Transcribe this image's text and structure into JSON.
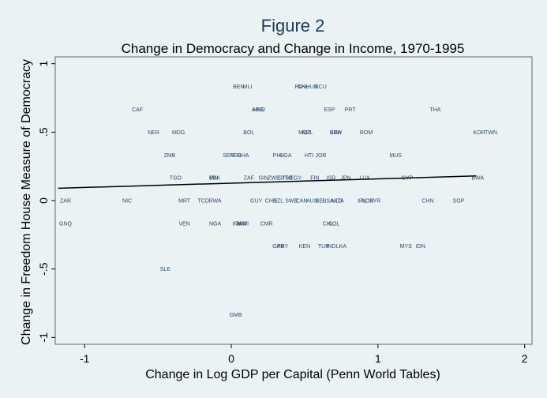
{
  "chart_data": {
    "type": "scatter",
    "title": "Figure 2",
    "subtitle": "Change in Democracy and Change in Income, 1970-1995",
    "xlabel": "Change in Log GDP per Capital (Penn World Tables)",
    "ylabel": "Change in Freedom House Measure of Democracy",
    "xlim": [
      -1.2,
      2.05
    ],
    "ylim": [
      -1.05,
      1.05
    ],
    "x_ticks": [
      -1,
      0,
      1,
      2
    ],
    "x_tick_labels": [
      "-1",
      "0",
      "1",
      "2"
    ],
    "y_ticks": [
      1,
      0.5,
      0,
      -0.5,
      -1
    ],
    "y_tick_labels": [
      "1",
      ".5",
      "0",
      "-.5",
      "-1"
    ],
    "grid": false,
    "points": [
      {
        "label": "BEN",
        "x": 0.05,
        "y": 0.833
      },
      {
        "label": "MLI",
        "x": 0.11,
        "y": 0.833
      },
      {
        "label": "PAN",
        "x": 0.47,
        "y": 0.833
      },
      {
        "label": "CHL",
        "x": 0.49,
        "y": 0.833
      },
      {
        "label": "HUN",
        "x": 0.55,
        "y": 0.833
      },
      {
        "label": "ECU",
        "x": 0.61,
        "y": 0.833
      },
      {
        "label": "CAF",
        "x": -0.64,
        "y": 0.667
      },
      {
        "label": "ARG",
        "x": 0.18,
        "y": 0.667
      },
      {
        "label": "HND",
        "x": 0.19,
        "y": 0.667
      },
      {
        "label": "ESP",
        "x": 0.67,
        "y": 0.667
      },
      {
        "label": "PRT",
        "x": 0.81,
        "y": 0.667
      },
      {
        "label": "THA",
        "x": 1.39,
        "y": 0.667
      },
      {
        "label": "NER",
        "x": -0.53,
        "y": 0.5
      },
      {
        "label": "MDG",
        "x": -0.36,
        "y": 0.5
      },
      {
        "label": "BOL",
        "x": 0.12,
        "y": 0.5
      },
      {
        "label": "MOZ",
        "x": 0.5,
        "y": 0.5
      },
      {
        "label": "NPL",
        "x": 0.52,
        "y": 0.5
      },
      {
        "label": "BRA",
        "x": 0.71,
        "y": 0.5
      },
      {
        "label": "URY",
        "x": 0.72,
        "y": 0.5
      },
      {
        "label": "ROM",
        "x": 0.92,
        "y": 0.5
      },
      {
        "label": "KOR",
        "x": 1.69,
        "y": 0.5
      },
      {
        "label": "TWN",
        "x": 1.77,
        "y": 0.5
      },
      {
        "label": "ZMB",
        "x": -0.42,
        "y": 0.333
      },
      {
        "label": "SEN",
        "x": -0.02,
        "y": 0.333
      },
      {
        "label": "PER",
        "x": 0.03,
        "y": 0.333
      },
      {
        "label": "GHA",
        "x": 0.08,
        "y": 0.333
      },
      {
        "label": "PHL",
        "x": 0.32,
        "y": 0.333
      },
      {
        "label": "UGA",
        "x": 0.37,
        "y": 0.333
      },
      {
        "label": "HTI",
        "x": 0.53,
        "y": 0.333
      },
      {
        "label": "JOR",
        "x": 0.61,
        "y": 0.333
      },
      {
        "label": "MUS",
        "x": 1.12,
        "y": 0.333
      },
      {
        "label": "TGO",
        "x": -0.38,
        "y": 0.167
      },
      {
        "label": "BDI",
        "x": -0.12,
        "y": 0.167
      },
      {
        "label": "PAK",
        "x": -0.11,
        "y": 0.167
      },
      {
        "label": "ZAF",
        "x": 0.12,
        "y": 0.167
      },
      {
        "label": "GIN",
        "x": 0.22,
        "y": 0.167
      },
      {
        "label": "ZWE",
        "x": 0.29,
        "y": 0.167
      },
      {
        "label": "GTM",
        "x": 0.36,
        "y": 0.167
      },
      {
        "label": "TTO",
        "x": 0.38,
        "y": 0.167
      },
      {
        "label": "EGY",
        "x": 0.44,
        "y": 0.167
      },
      {
        "label": "FIN",
        "x": 0.57,
        "y": 0.167
      },
      {
        "label": "ISR",
        "x": 0.68,
        "y": 0.167
      },
      {
        "label": "JPN",
        "x": 0.78,
        "y": 0.167
      },
      {
        "label": "LUX",
        "x": 0.91,
        "y": 0.167
      },
      {
        "label": "CYP",
        "x": 1.2,
        "y": 0.167
      },
      {
        "label": "BWA",
        "x": 1.68,
        "y": 0.167
      },
      {
        "label": "ZAR",
        "x": -1.13,
        "y": 0
      },
      {
        "label": "NIC",
        "x": -0.71,
        "y": 0
      },
      {
        "label": "MRT",
        "x": -0.32,
        "y": 0
      },
      {
        "label": "TCD",
        "x": -0.19,
        "y": 0
      },
      {
        "label": "RWA",
        "x": -0.11,
        "y": 0
      },
      {
        "label": "GUY",
        "x": 0.17,
        "y": 0
      },
      {
        "label": "CHE",
        "x": 0.27,
        "y": 0
      },
      {
        "label": "NZL",
        "x": 0.32,
        "y": 0
      },
      {
        "label": "SWE",
        "x": 0.41,
        "y": 0
      },
      {
        "label": "CAN",
        "x": 0.48,
        "y": 0
      },
      {
        "label": "AUS",
        "x": 0.55,
        "y": 0
      },
      {
        "label": "BEL",
        "x": 0.61,
        "y": 0
      },
      {
        "label": "USA",
        "x": 0.66,
        "y": 0
      },
      {
        "label": "NLD",
        "x": 0.72,
        "y": 0
      },
      {
        "label": "ITA",
        "x": 0.74,
        "y": 0
      },
      {
        "label": "IRL",
        "x": 0.89,
        "y": 0
      },
      {
        "label": "NOR",
        "x": 0.93,
        "y": 0
      },
      {
        "label": "SYR",
        "x": 0.98,
        "y": 0
      },
      {
        "label": "CHN",
        "x": 1.34,
        "y": 0
      },
      {
        "label": "SGP",
        "x": 1.55,
        "y": 0
      },
      {
        "label": "GNQ",
        "x": -1.13,
        "y": -0.167
      },
      {
        "label": "VEN",
        "x": -0.32,
        "y": -0.167
      },
      {
        "label": "NGA",
        "x": -0.11,
        "y": -0.167
      },
      {
        "label": "IRN",
        "x": 0.04,
        "y": -0.167
      },
      {
        "label": "JAM",
        "x": 0.07,
        "y": -0.167
      },
      {
        "label": "MWI",
        "x": 0.08,
        "y": -0.167
      },
      {
        "label": "CMR",
        "x": 0.24,
        "y": -0.167
      },
      {
        "label": "CHL",
        "x": 0.66,
        "y": -0.167
      },
      {
        "label": "COL",
        "x": 0.7,
        "y": -0.167
      },
      {
        "label": "GAB",
        "x": 0.32,
        "y": -0.333
      },
      {
        "label": "PRY",
        "x": 0.35,
        "y": -0.333
      },
      {
        "label": "KEN",
        "x": 0.5,
        "y": -0.333
      },
      {
        "label": "TUR",
        "x": 0.63,
        "y": -0.333
      },
      {
        "label": "IND",
        "x": 0.68,
        "y": -0.333
      },
      {
        "label": "LKA",
        "x": 0.75,
        "y": -0.333
      },
      {
        "label": "MYS",
        "x": 1.19,
        "y": -0.333
      },
      {
        "label": "IDN",
        "x": 1.29,
        "y": -0.333
      },
      {
        "label": "SLE",
        "x": -0.45,
        "y": -0.5
      },
      {
        "label": "GMB",
        "x": 0.03,
        "y": -0.833
      }
    ],
    "fit_line": {
      "x": [
        -1.18,
        1.67
      ],
      "y": [
        0.09,
        0.18
      ]
    }
  }
}
